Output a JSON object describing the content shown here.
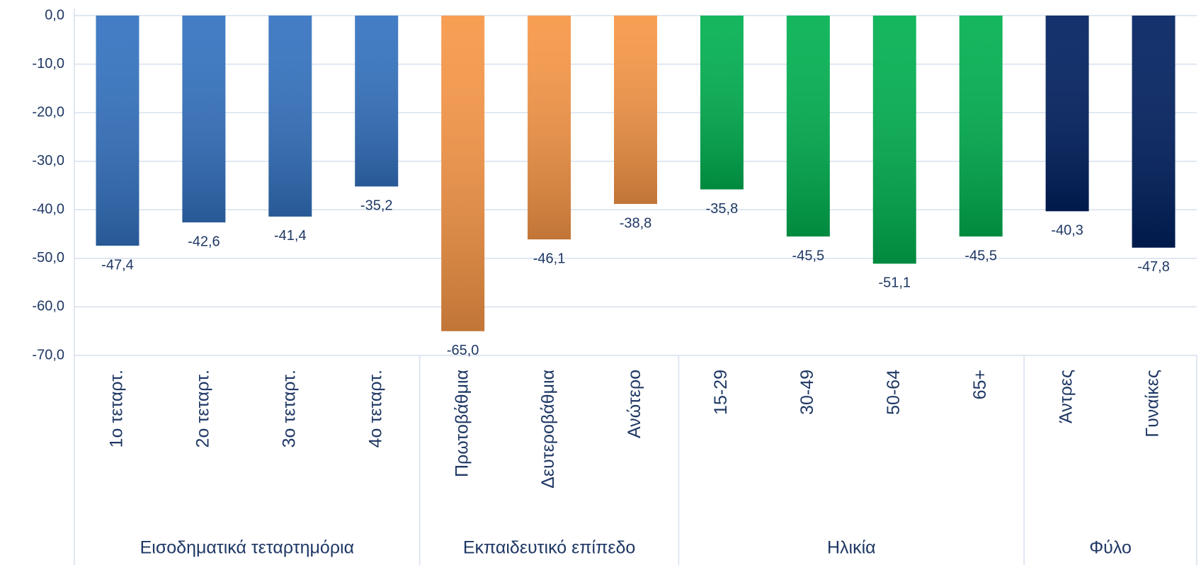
{
  "chart_data": {
    "type": "bar",
    "ylim": [
      -70,
      0
    ],
    "yticks": [
      {
        "value": 0,
        "label": "0,0"
      },
      {
        "value": -10,
        "label": "-10,0"
      },
      {
        "value": -20,
        "label": "-20,0"
      },
      {
        "value": -30,
        "label": "-30,0"
      },
      {
        "value": -40,
        "label": "-40,0"
      },
      {
        "value": -50,
        "label": "-50,0"
      },
      {
        "value": -60,
        "label": "-60,0"
      },
      {
        "value": -70,
        "label": "-70,0"
      }
    ],
    "grid": true,
    "groups": [
      {
        "name": "Εισοδηματικά τεταρτημόρια",
        "color": "#3372c0",
        "categories": [
          "1ο τεταρτ.",
          "2ο τεταρτ.",
          "3ο τεταρτ.",
          "4ο τεταρτ."
        ],
        "values": [
          -47.4,
          -42.6,
          -41.4,
          -35.2
        ],
        "value_labels": [
          "-47,4",
          "-42,6",
          "-41,4",
          "-35,2"
        ]
      },
      {
        "name": "Εκπαιδευτικό επίπεδο",
        "color": "#f79646",
        "categories": [
          "Πρωτοβάθμια",
          "Δευτεροβάθμια",
          "Ανώτερο"
        ],
        "values": [
          -65.0,
          -46.1,
          -38.8
        ],
        "value_labels": [
          "-65,0",
          "-46,1",
          "-38,8"
        ]
      },
      {
        "name": "Ηλικία",
        "color": "#00b050",
        "categories": [
          "15-29",
          "30-49",
          "50-64",
          "65+"
        ],
        "values": [
          -35.8,
          -45.5,
          -51.1,
          -45.5
        ],
        "value_labels": [
          "-35,8",
          "-45,5",
          "-51,1",
          "-45,5"
        ]
      },
      {
        "name": "Φύλο",
        "color": "#002060",
        "categories": [
          "Άντρες",
          "Γυναίκες"
        ],
        "values": [
          -40.3,
          -47.8
        ],
        "value_labels": [
          "-40,3",
          "-47,8"
        ]
      }
    ]
  }
}
